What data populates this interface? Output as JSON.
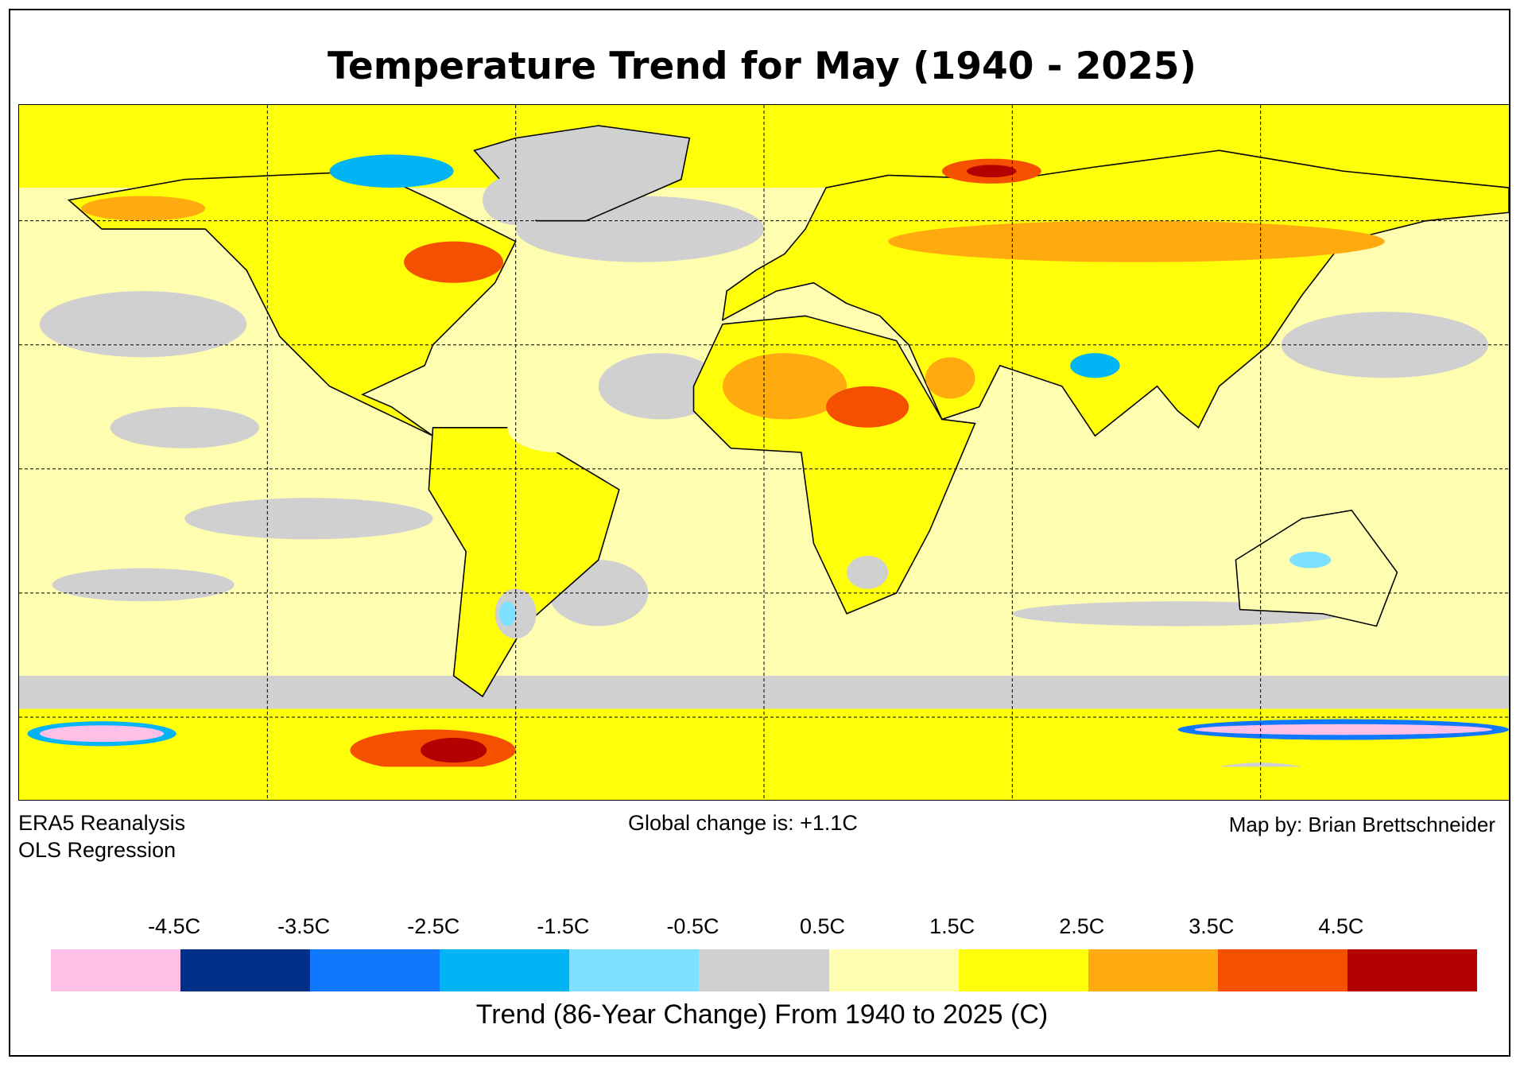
{
  "title": "Temperature Trend for May (1940 - 2025)",
  "notes": {
    "source": "ERA5 Reanalysis",
    "method": "OLS Regression",
    "global_change": "Global change is: +1.1C",
    "credit": "Map by: Brian Brettschneider"
  },
  "colorbar": {
    "title": "Trend (86-Year Change) From 1940 to 2025 (C)",
    "labels": [
      "-4.5C",
      "-3.5C",
      "-2.5C",
      "-1.5C",
      "-0.5C",
      "0.5C",
      "1.5C",
      "2.5C",
      "3.5C",
      "4.5C"
    ],
    "colors": [
      "#FFC0E8",
      "#003087",
      "#0F78FF",
      "#00B4F5",
      "#7DE1FF",
      "#D0D0D0",
      "#FFFDB0",
      "#FFFF0A",
      "#FFAA0F",
      "#F55000",
      "#B40000"
    ]
  },
  "map": {
    "projection": "equirectangular",
    "lon_range": [
      -180,
      180
    ],
    "lat_range": [
      -80,
      88
    ],
    "graticule_lon": [
      -120,
      -60,
      0,
      60,
      120
    ],
    "graticule_lat": [
      60,
      30,
      0,
      -30,
      -60
    ]
  }
}
